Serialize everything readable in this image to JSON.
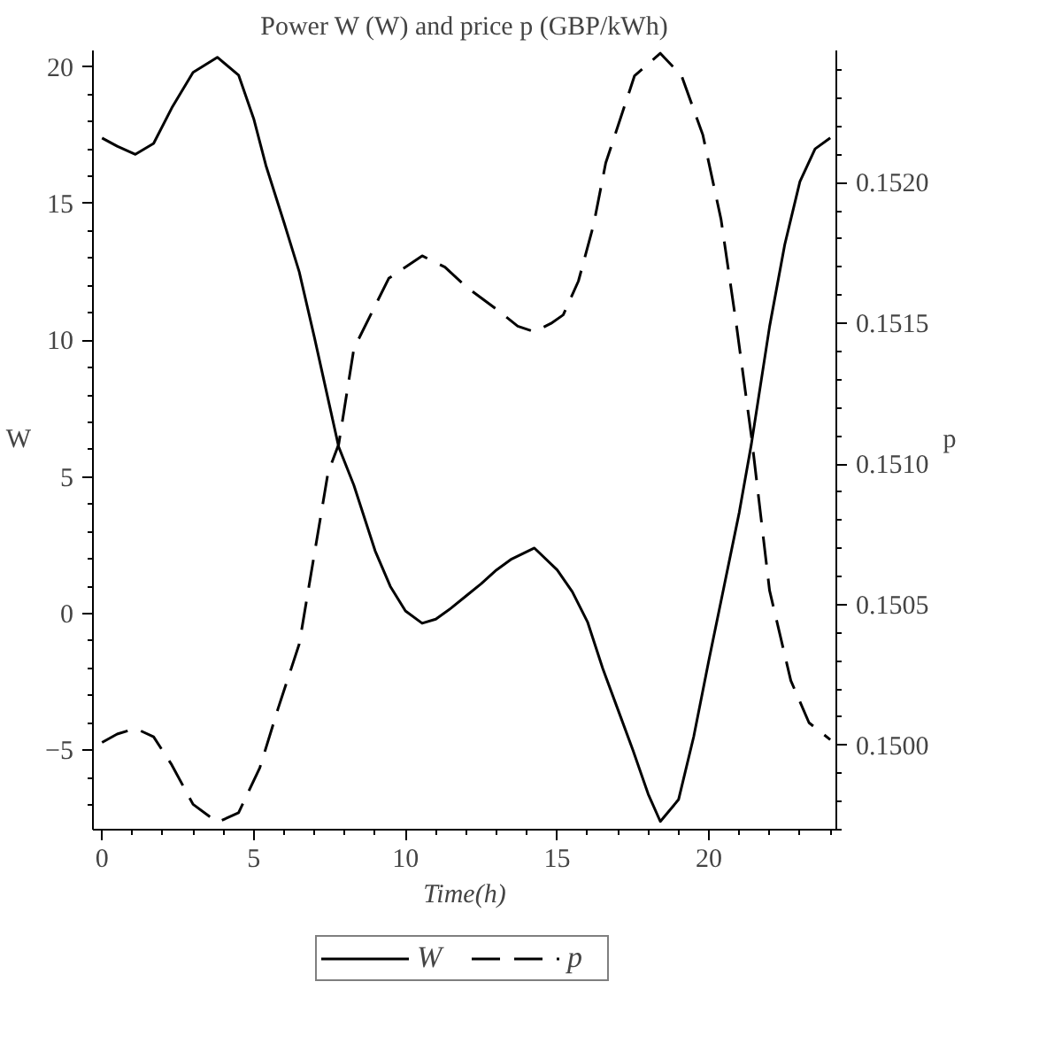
{
  "chart_data": {
    "type": "line",
    "title": "Power W (W) and price p (GBP/kWh)",
    "xlabel": "Time(h)",
    "ylabel": "W",
    "y2label": "p",
    "xlim": [
      -0.3,
      24.2
    ],
    "xticks": [
      0,
      5,
      10,
      15,
      20
    ],
    "ylim": [
      -7.9,
      20.6
    ],
    "yticks": [
      -5,
      0,
      5,
      10,
      15,
      20
    ],
    "y2lim": [
      0.1497,
      0.15247
    ],
    "y2ticks": [
      {
        "value": 0.15,
        "label": "0.1500"
      },
      {
        "value": 0.1505,
        "label": "0.1505"
      },
      {
        "value": 0.151,
        "label": "0.1510"
      },
      {
        "value": 0.1515,
        "label": "0.1515"
      },
      {
        "value": 0.152,
        "label": "0.1520"
      }
    ],
    "grid": false,
    "legend": "bottom",
    "series": [
      {
        "name": "W",
        "color": "#000000",
        "line_style": "solid",
        "x": [
          0,
          0.5,
          1.1,
          1.7,
          2.3,
          3,
          3.8,
          4.5,
          5,
          5.4,
          6,
          6.5,
          7,
          7.5,
          7.8,
          8.3,
          9,
          9.5,
          10,
          10.55,
          11,
          11.5,
          12,
          12.5,
          13,
          13.5,
          14.25,
          15,
          15.5,
          16,
          16.5,
          17,
          17.5,
          18,
          18.4,
          19,
          19.5,
          20,
          20.5,
          21,
          21.4,
          22,
          22.5,
          23,
          23.5,
          24
        ],
        "values": [
          17.4,
          17.1,
          16.8,
          17.2,
          18.5,
          19.8,
          20.35,
          19.7,
          18.1,
          16.4,
          14.3,
          12.5,
          10.1,
          7.6,
          6.1,
          4.7,
          2.3,
          1.0,
          0.1,
          -0.35,
          -0.2,
          0.2,
          0.65,
          1.1,
          1.6,
          2.0,
          2.4,
          1.6,
          0.8,
          -0.3,
          -2.0,
          -3.5,
          -5.0,
          -6.6,
          -7.6,
          -6.8,
          -4.5,
          -1.7,
          1.0,
          3.7,
          6.2,
          10.5,
          13.5,
          15.8,
          17.0,
          17.4
        ]
      },
      {
        "name": "p",
        "color": "#000000",
        "line_style": "dashed",
        "axis": "y2",
        "x": [
          0,
          0.5,
          1.1,
          1.7,
          2.3,
          3,
          3.8,
          4.5,
          5.2,
          5.8,
          6.5,
          7.45,
          7.8,
          8.3,
          9.45,
          10.55,
          11.3,
          12,
          13,
          13.7,
          14.25,
          14.8,
          15.2,
          15.7,
          16.2,
          16.6,
          17.55,
          18.4,
          19.1,
          19.8,
          20.4,
          20.9,
          21.4,
          22,
          22.7,
          23.3,
          24
        ],
        "values": [
          0.15001,
          0.15004,
          0.15006,
          0.15003,
          0.14993,
          0.14979,
          0.149726,
          0.14976,
          0.14992,
          0.15013,
          0.15036,
          0.15097,
          0.15107,
          0.15141,
          0.15166,
          0.15174,
          0.1517,
          0.15163,
          0.15155,
          0.15149,
          0.15147,
          0.1515,
          0.15153,
          0.15165,
          0.15185,
          0.15207,
          0.15238,
          0.15246,
          0.15238,
          0.15217,
          0.15187,
          0.1515,
          0.1511,
          0.15055,
          0.15023,
          0.15008,
          0.15002
        ]
      }
    ]
  }
}
